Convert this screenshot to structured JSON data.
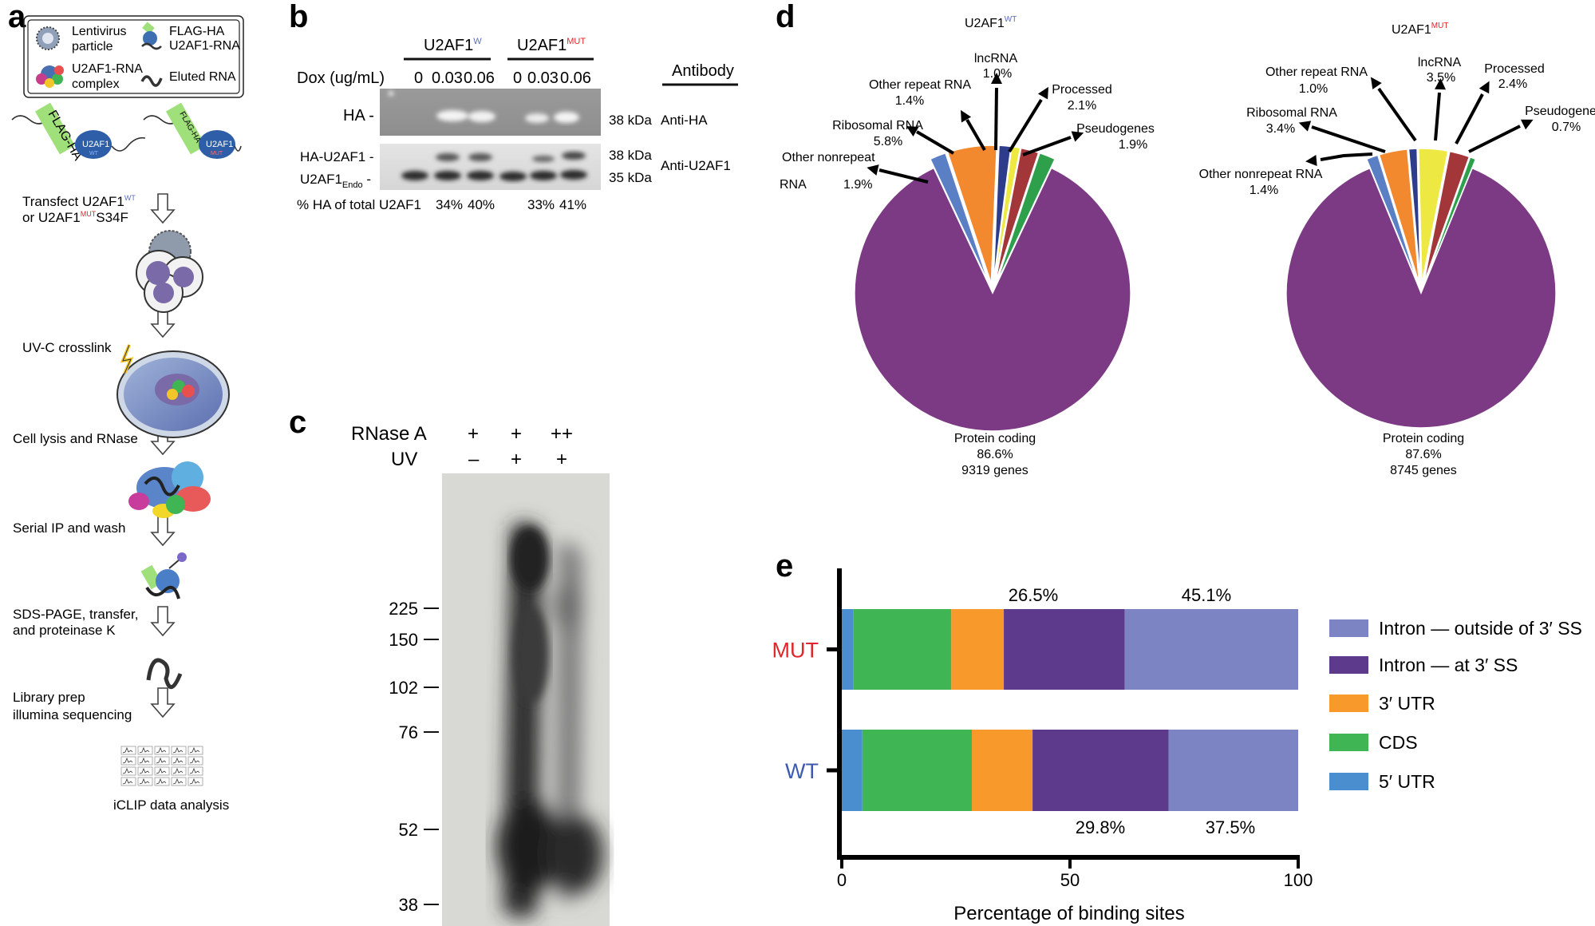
{
  "panels": {
    "a": {
      "letter": "a",
      "legend": {
        "lentivirus": [
          "Lentivirus",
          "particle"
        ],
        "flag_rna": [
          "FLAG-HA",
          "U2AF1-RNA"
        ],
        "complex": [
          "U2AF1-RNA",
          "complex"
        ],
        "eluted": "Eluted RNA"
      },
      "construct_tag": "FLAG-HA",
      "construct_protein": "U2AF1",
      "construct_wt_sup": "WT",
      "construct_mut_sup": "MUT",
      "steps": {
        "transfect_1a": "Transfect U2AF1",
        "transfect_1sup": "WT",
        "transfect_2a": "or U2AF1",
        "transfect_2sup": "MUT",
        "transfect_2b": "S34F",
        "uvc": "UV-C crosslink",
        "lysis": "Cell lysis and RNase",
        "ip": "Serial IP and wash",
        "sds_1": "SDS-PAGE, transfer,",
        "sds_2": "and proteinase K",
        "lib_1": "Library prep",
        "lib_2": "illumina sequencing",
        "analysis": "iCLIP data analysis"
      }
    },
    "b": {
      "letter": "b",
      "wt_group": "U2AF1",
      "wt_sup": "W",
      "mut_group": "U2AF1",
      "mut_sup": "MUT",
      "dox_label": "Dox (ug/mL)",
      "dox_values": [
        "0",
        "0.03",
        "0.06",
        "0",
        "0.03",
        "0.06"
      ],
      "antibody_header": "Antibody",
      "ha_row": "HA -",
      "ha_kda": "38 kDa",
      "ha_antibody": "Anti-HA",
      "u2af1_row": "HA-U2AF1 -",
      "u2af1_kda": "38 kDa",
      "endo_row_a": "U2AF1",
      "endo_row_sub": "Endo",
      "endo_row_b": " -",
      "endo_kda": "35 kDa",
      "u2af1_antibody": "Anti-U2AF1",
      "pct_label": "% HA of total U2AF1",
      "pct_values": [
        "34%",
        "40%",
        "33%",
        "41%"
      ]
    },
    "c": {
      "letter": "c",
      "rnase_label": "RNase A",
      "uv_label": "UV",
      "rnase_values": [
        "+",
        "+",
        "++"
      ],
      "uv_values": [
        "–",
        "+",
        "+"
      ],
      "markers": [
        225,
        150,
        102,
        76,
        52,
        38
      ]
    },
    "d": {
      "letter": "d"
    },
    "e": {
      "letter": "e"
    }
  },
  "colors": {
    "protein_coding": "#7B3A83",
    "other_nonrepeat": "#5B7FC4",
    "ribosomal": "#F2892E",
    "other_repeat": "#2E3C8C",
    "lncrna": "#EDE842",
    "processed": "#A33638",
    "pseudogenes": "#2EA04C",
    "utr5": "#4A8ED0",
    "cds": "#3FB553",
    "utr3": "#F7992B",
    "intron_at": "#5E3A8C",
    "intron_out": "#7D84C4",
    "mut_label": "#E0262B",
    "wt_label": "#3C5AAE",
    "wt_sup": "#5B6FBF",
    "mut_sup": "#E0262B"
  },
  "chart_data": [
    {
      "type": "pie",
      "title": "U2AF1",
      "title_sup": "WT",
      "slices": [
        {
          "label": "Protein coding",
          "value": 86.6,
          "pct": "86.6%",
          "extra": "9319 genes"
        },
        {
          "label": "Other nonrepeat RNA",
          "value": 1.9,
          "pct": "1.9%"
        },
        {
          "label": "Ribosomal RNA",
          "value": 5.8,
          "pct": "5.8%"
        },
        {
          "label": "Other repeat RNA",
          "value": 1.4,
          "pct": "1.4%"
        },
        {
          "label": "lncRNA",
          "value": 1.0,
          "pct": "1.0%"
        },
        {
          "label": "Processed",
          "value": 2.1,
          "pct": "2.1%"
        },
        {
          "label": "Pseudogenes",
          "value": 1.9,
          "pct": "1.9%"
        }
      ]
    },
    {
      "type": "pie",
      "title": "U2AF1",
      "title_sup": "MUT",
      "slices": [
        {
          "label": "Protein coding",
          "value": 87.6,
          "pct": "87.6%",
          "extra": "8745 genes"
        },
        {
          "label": "Other nonrepeat RNA",
          "value": 1.4,
          "pct": "1.4%"
        },
        {
          "label": "Ribosomal RNA",
          "value": 3.4,
          "pct": "3.4%"
        },
        {
          "label": "Other repeat RNA",
          "value": 1.0,
          "pct": "1.0%"
        },
        {
          "label": "lncRNA",
          "value": 3.5,
          "pct": "3.5%"
        },
        {
          "label": "Processed",
          "value": 2.4,
          "pct": "2.4%"
        },
        {
          "label": "Pseudogenes",
          "value": 0.7,
          "pct": "0.7%"
        }
      ]
    },
    {
      "type": "bar",
      "orientation": "horizontal-stacked",
      "categories": [
        "MUT",
        "WT"
      ],
      "series": [
        {
          "name": "5′ UTR",
          "values": [
            2.5,
            4.5
          ]
        },
        {
          "name": "CDS",
          "values": [
            21.5,
            24.0
          ]
        },
        {
          "name": "3′ UTR",
          "values": [
            11.5,
            13.3
          ]
        },
        {
          "name": "Intron — at 3′ SS",
          "values": [
            26.5,
            29.8
          ]
        },
        {
          "name": "Intron — outside of 3′ SS",
          "values": [
            38.0,
            28.4
          ]
        }
      ],
      "annotations": {
        "MUT": [
          "26.5%",
          "45.1%"
        ],
        "WT": [
          "29.8%",
          "37.5%"
        ]
      },
      "xlabel": "Percentage of binding sites",
      "xlim": [
        0,
        100
      ],
      "xticks": [
        0,
        50,
        100
      ],
      "legend_order": [
        "Intron — outside of 3′ SS",
        "Intron — at 3′ SS",
        "3′ UTR",
        "CDS",
        "5′ UTR"
      ],
      "legend": "right"
    }
  ]
}
